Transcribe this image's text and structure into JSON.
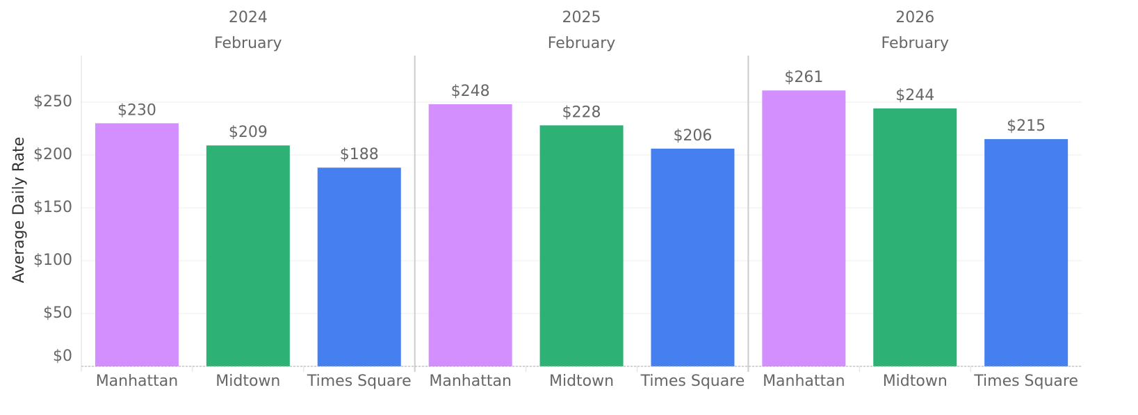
{
  "chart_data": {
    "type": "bar",
    "ylabel": "Average Daily Rate",
    "categories": [
      "Manhattan",
      "Midtown",
      "Times Square"
    ],
    "colors": [
      "#d38ffe",
      "#2db174",
      "#467ff0"
    ],
    "panels": [
      {
        "year": "2024",
        "month": "February",
        "values": [
          230,
          209,
          188
        ],
        "value_labels": [
          "$230",
          "$209",
          "$188"
        ]
      },
      {
        "year": "2025",
        "month": "February",
        "values": [
          248,
          228,
          206
        ],
        "value_labels": [
          "$248",
          "$228",
          "$206"
        ]
      },
      {
        "year": "2026",
        "month": "February",
        "values": [
          261,
          244,
          215
        ],
        "value_labels": [
          "$261",
          "$244",
          "$215"
        ]
      }
    ],
    "ylim": [
      0,
      294
    ],
    "yticks": [
      {
        "value": 0,
        "label": "$0"
      },
      {
        "value": 50,
        "label": "$50"
      },
      {
        "value": 100,
        "label": "$100"
      },
      {
        "value": 150,
        "label": "$150"
      },
      {
        "value": 200,
        "label": "$200"
      },
      {
        "value": 250,
        "label": "$250"
      }
    ],
    "grid": true
  }
}
